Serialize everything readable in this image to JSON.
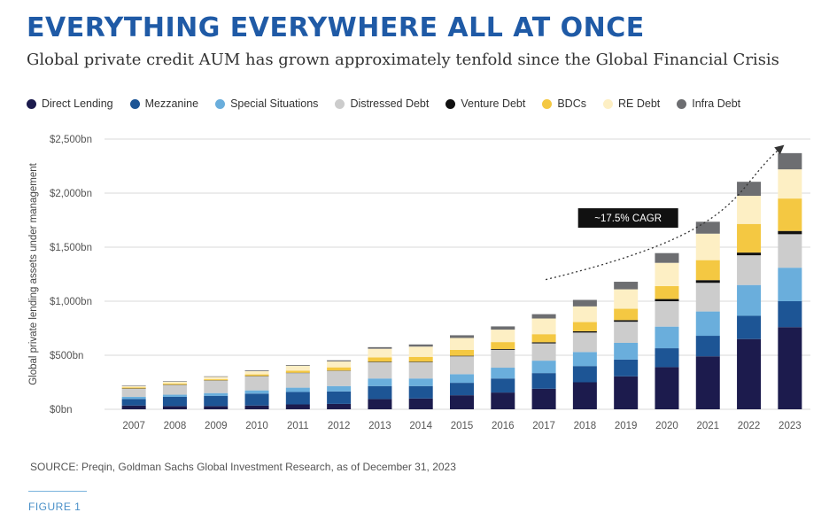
{
  "header": {
    "title": "EVERYTHING EVERYWHERE ALL AT ONCE",
    "subtitle": "Global private credit AUM has grown approximately tenfold since the Global Financial Crisis"
  },
  "footer": {
    "source": "SOURCE: Preqin, Goldman Sachs Global Investment Research, as of December 31, 2023",
    "figure_label": "FIGURE 1"
  },
  "colors": {
    "title": "#1f5aa6",
    "direct_lending": "#1c1b4d",
    "mezzanine": "#1d5595",
    "special_situations": "#6aaedc",
    "distressed_debt": "#cccccc",
    "venture_debt": "#111111",
    "bdcs": "#f4c842",
    "re_debt": "#fdefc4",
    "infra_debt": "#6d6e71"
  },
  "chart_data": {
    "type": "bar",
    "stacked": true,
    "title": "EVERYTHING EVERYWHERE ALL AT ONCE",
    "xlabel": "",
    "ylabel": "Global private lending assets under management",
    "ylim": [
      0,
      2500
    ],
    "yticks": [
      0,
      500,
      1000,
      1500,
      2000,
      2500
    ],
    "ytick_labels": [
      "$0bn",
      "$500bn",
      "$1,000bn",
      "$1,500bn",
      "$2,000bn",
      "$2,500bn"
    ],
    "grid": true,
    "legend_position": "top",
    "categories": [
      "2007",
      "2008",
      "2009",
      "2010",
      "2011",
      "2012",
      "2013",
      "2014",
      "2015",
      "2016",
      "2017",
      "2018",
      "2019",
      "2020",
      "2021",
      "2022",
      "2023"
    ],
    "series": [
      {
        "name": "Direct Lending",
        "color": "#1c1b4d",
        "values": [
          35,
          30,
          30,
          35,
          45,
          50,
          95,
          100,
          130,
          155,
          190,
          250,
          305,
          390,
          490,
          650,
          760
        ]
      },
      {
        "name": "Mezzanine",
        "color": "#1d5595",
        "values": [
          60,
          85,
          95,
          110,
          115,
          115,
          120,
          115,
          115,
          130,
          145,
          150,
          155,
          175,
          190,
          215,
          240
        ]
      },
      {
        "name": "Special Situations",
        "color": "#6aaedc",
        "values": [
          20,
          20,
          25,
          30,
          40,
          50,
          70,
          70,
          80,
          100,
          115,
          130,
          155,
          200,
          225,
          285,
          310
        ]
      },
      {
        "name": "Distressed Debt",
        "color": "#cccccc",
        "values": [
          75,
          90,
          115,
          130,
          135,
          140,
          150,
          150,
          165,
          165,
          160,
          180,
          195,
          235,
          265,
          275,
          310
        ]
      },
      {
        "name": "Venture Debt",
        "color": "#111111",
        "values": [
          3,
          3,
          3,
          3,
          3,
          3,
          5,
          5,
          5,
          7,
          10,
          12,
          15,
          20,
          25,
          25,
          30
        ]
      },
      {
        "name": "BDCs",
        "color": "#f4c842",
        "values": [
          10,
          10,
          10,
          15,
          20,
          30,
          40,
          45,
          55,
          65,
          75,
          85,
          105,
          120,
          185,
          265,
          300
        ]
      },
      {
        "name": "RE Debt",
        "color": "#fdefc4",
        "values": [
          12,
          17,
          22,
          30,
          45,
          55,
          80,
          95,
          110,
          115,
          145,
          145,
          180,
          215,
          245,
          260,
          270
        ]
      },
      {
        "name": "Infra Debt",
        "color": "#6d6e71",
        "values": [
          5,
          5,
          5,
          7,
          7,
          10,
          15,
          20,
          25,
          30,
          40,
          60,
          70,
          90,
          110,
          130,
          150
        ]
      }
    ],
    "annotation": {
      "text": "~17.5% CAGR",
      "arrow": "dotted, rising from 2017 to 2023"
    }
  }
}
